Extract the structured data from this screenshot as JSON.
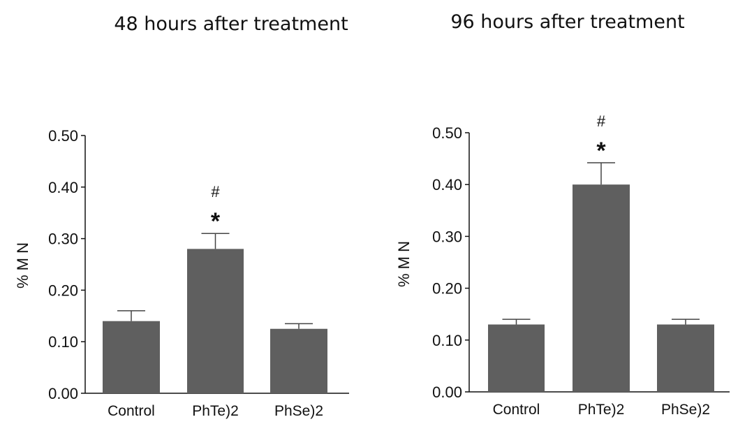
{
  "chart_data": [
    {
      "type": "bar",
      "title": "48 hours after treatment",
      "ylabel": "% M N",
      "xlabel": "",
      "ylim": [
        0,
        0.5
      ],
      "yticks": [
        "0.00",
        "0.10",
        "0.20",
        "0.30",
        "0.40",
        "0.50"
      ],
      "categories": [
        "Control",
        "PhTe)2",
        "PhSe)2"
      ],
      "values": [
        0.14,
        0.28,
        0.125
      ],
      "error": [
        0.02,
        0.03,
        0.01
      ],
      "annotations": [
        {
          "category": "PhTe)2",
          "hash": "#",
          "star": "*"
        }
      ],
      "bar_color": "#5f5f5f"
    },
    {
      "type": "bar",
      "title": "96 hours after treatment",
      "ylabel": "% M N",
      "xlabel": "",
      "ylim": [
        0,
        0.5
      ],
      "yticks": [
        "0.00",
        "0.10",
        "0.20",
        "0.30",
        "0.40",
        "0.50"
      ],
      "categories": [
        "Control",
        "PhTe)2",
        "PhSe)2"
      ],
      "values": [
        0.13,
        0.4,
        0.13
      ],
      "error": [
        0.01,
        0.042,
        0.01
      ],
      "annotations": [
        {
          "category": "PhTe)2",
          "hash": "#",
          "star": "*"
        }
      ],
      "bar_color": "#5f5f5f"
    }
  ]
}
